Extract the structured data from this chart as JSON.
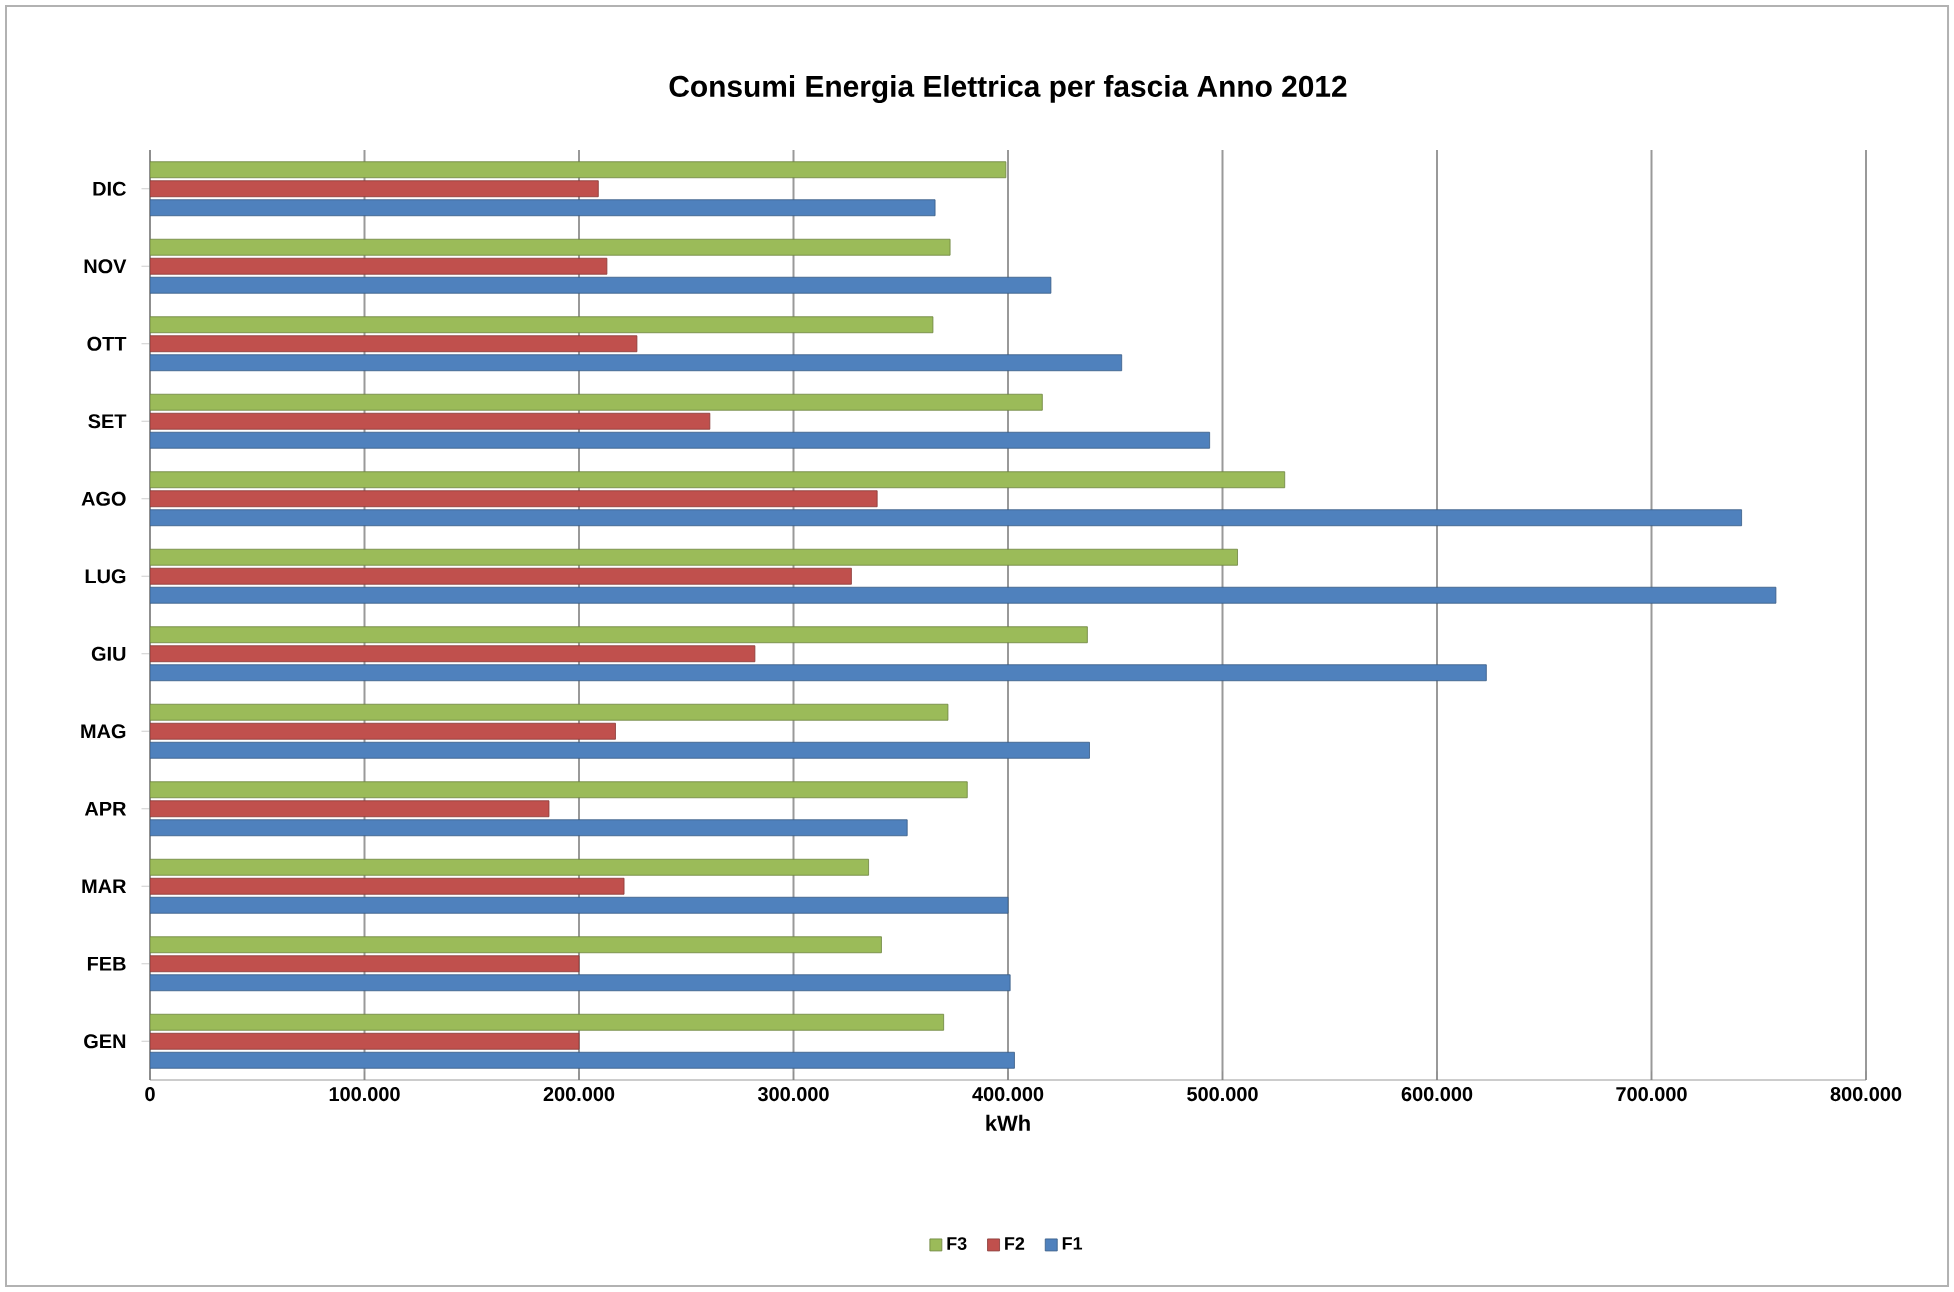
{
  "chart_data": {
    "type": "bar",
    "orientation": "horizontal",
    "title": "Consumi Energia Elettrica per fascia Anno 2012",
    "xlabel": "kWh",
    "categories": [
      "DIC",
      "NOV",
      "OTT",
      "SET",
      "AGO",
      "LUG",
      "GIU",
      "MAG",
      "APR",
      "MAR",
      "FEB",
      "GEN"
    ],
    "series": [
      {
        "name": "F3",
        "color": "#9bbb59",
        "values": [
          399000,
          373000,
          365000,
          416000,
          529000,
          507000,
          437000,
          372000,
          381000,
          335000,
          341000,
          370000
        ]
      },
      {
        "name": "F2",
        "color": "#c0504d",
        "values": [
          209000,
          213000,
          227000,
          261000,
          339000,
          327000,
          282000,
          217000,
          186000,
          221000,
          200000,
          200000
        ]
      },
      {
        "name": "F1",
        "color": "#4f81bd",
        "values": [
          366000,
          420000,
          453000,
          494000,
          742000,
          758000,
          623000,
          438000,
          353000,
          400000,
          401000,
          403000
        ]
      }
    ],
    "xlim": [
      0,
      800000
    ],
    "xticks": [
      0,
      {
        "value": 100000,
        "label": "100.000"
      },
      {
        "value": 200000,
        "label": "200.000"
      },
      {
        "value": 300000,
        "label": "300.000"
      },
      {
        "value": 400000,
        "label": "400.000"
      },
      {
        "value": 500000,
        "label": "500.000"
      },
      {
        "value": 600000,
        "label": "600.000"
      },
      {
        "value": 700000,
        "label": "700.000"
      },
      {
        "value": 800000,
        "label": "800.000"
      }
    ],
    "grid": "x",
    "legend": "bottom"
  }
}
